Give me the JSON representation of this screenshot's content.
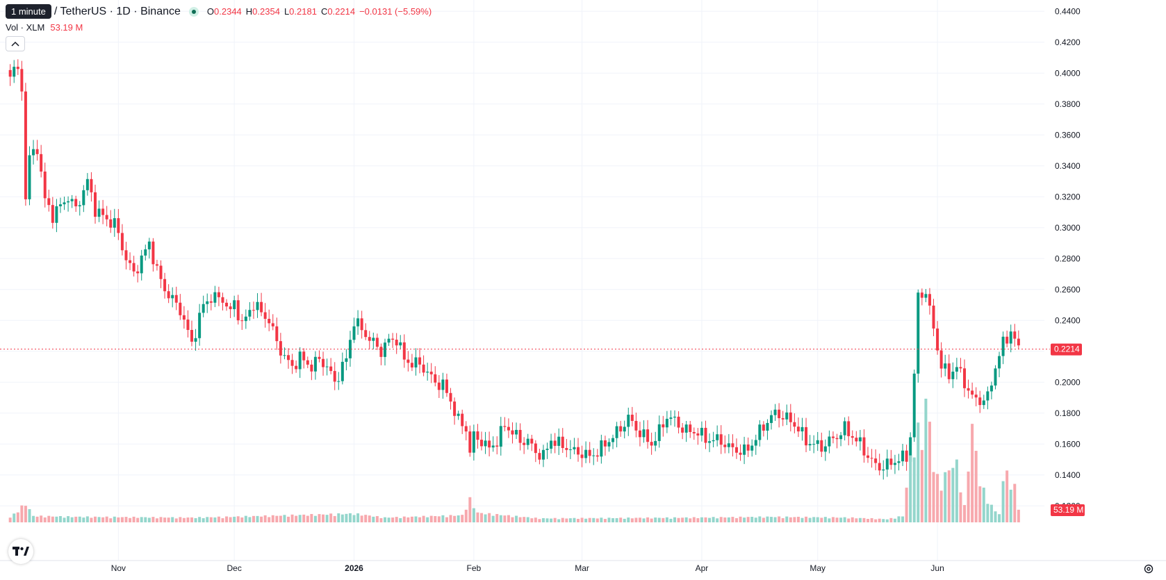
{
  "legend": {
    "tooltip": "1 minute",
    "title": "/ TetherUS · 1D · Binance",
    "open_label": "O",
    "open": "0.2344",
    "high_label": "H",
    "high": "0.2354",
    "low_label": "L",
    "low": "0.2181",
    "close_label": "C",
    "close": "0.2214",
    "change": "−0.0131 (−5.59%)",
    "vol_label": "Vol · XLM",
    "vol_value": "53.19 M"
  },
  "badges": {
    "last_price": "0.2214",
    "last_volume": "53.19 M"
  },
  "icons": {
    "collapse": "chevron-up-icon",
    "logo": "tradingview-logo-icon",
    "settings": "gear-icon"
  },
  "colors": {
    "up": "#089981",
    "down": "#f23645",
    "up_volume": "#94d6cc",
    "down_volume": "#f7a8ad",
    "grid": "#f0f3fa",
    "axis_text": "#131722"
  },
  "chart_data": {
    "type": "candlestick",
    "ylim": [
      0.11,
      0.445
    ],
    "y_ticks": [
      "0.4400",
      "0.4200",
      "0.4000",
      "0.3800",
      "0.3600",
      "0.3400",
      "0.3200",
      "0.3000",
      "0.2800",
      "0.2600",
      "0.2400",
      "0.2200",
      "0.2000",
      "0.1800",
      "0.1600",
      "0.1400",
      "0.1200"
    ],
    "x_ticks": [
      "Nov",
      "Dec",
      "2026",
      "Feb",
      "Mar",
      "Apr",
      "May",
      "Jun"
    ],
    "x_tick_index": [
      31,
      61,
      92,
      123,
      151,
      182,
      212,
      243
    ],
    "start_index": 3,
    "keypoints": [
      [
        3,
        0.402
      ],
      [
        5,
        0.401
      ],
      [
        6,
        0.39
      ],
      [
        7,
        0.32
      ],
      [
        8,
        0.345
      ],
      [
        10,
        0.352
      ],
      [
        12,
        0.318
      ],
      [
        14,
        0.308
      ],
      [
        18,
        0.32
      ],
      [
        20,
        0.312
      ],
      [
        23,
        0.33
      ],
      [
        25,
        0.312
      ],
      [
        28,
        0.305
      ],
      [
        30,
        0.303
      ],
      [
        33,
        0.28
      ],
      [
        35,
        0.27
      ],
      [
        37,
        0.28
      ],
      [
        39,
        0.29
      ],
      [
        41,
        0.272
      ],
      [
        43,
        0.26
      ],
      [
        47,
        0.247
      ],
      [
        50,
        0.225
      ],
      [
        53,
        0.25
      ],
      [
        55,
        0.255
      ],
      [
        58,
        0.254
      ],
      [
        60,
        0.245
      ],
      [
        61,
        0.252
      ],
      [
        63,
        0.237
      ],
      [
        66,
        0.251
      ],
      [
        68,
        0.245
      ],
      [
        70,
        0.24
      ],
      [
        72,
        0.226
      ],
      [
        74,
        0.216
      ],
      [
        76,
        0.21
      ],
      [
        78,
        0.216
      ],
      [
        80,
        0.212
      ],
      [
        81,
        0.21
      ],
      [
        83,
        0.215
      ],
      [
        85,
        0.21
      ],
      [
        87,
        0.2
      ],
      [
        90,
        0.215
      ],
      [
        92,
        0.24
      ],
      [
        94,
        0.234
      ],
      [
        96,
        0.228
      ],
      [
        98,
        0.223
      ],
      [
        99,
        0.22
      ],
      [
        101,
        0.227
      ],
      [
        103,
        0.228
      ],
      [
        105,
        0.215
      ],
      [
        107,
        0.212
      ],
      [
        109,
        0.212
      ],
      [
        111,
        0.206
      ],
      [
        113,
        0.2
      ],
      [
        115,
        0.198
      ],
      [
        117,
        0.188
      ],
      [
        119,
        0.175
      ],
      [
        121,
        0.17
      ],
      [
        122,
        0.155
      ],
      [
        123,
        0.165
      ],
      [
        125,
        0.162
      ],
      [
        127,
        0.157
      ],
      [
        129,
        0.162
      ],
      [
        131,
        0.172
      ],
      [
        133,
        0.168
      ],
      [
        135,
        0.162
      ],
      [
        137,
        0.162
      ],
      [
        139,
        0.155
      ],
      [
        141,
        0.152
      ],
      [
        143,
        0.163
      ],
      [
        145,
        0.16
      ],
      [
        147,
        0.158
      ],
      [
        149,
        0.155
      ],
      [
        151,
        0.154
      ],
      [
        153,
        0.152
      ],
      [
        155,
        0.155
      ],
      [
        157,
        0.16
      ],
      [
        159,
        0.165
      ],
      [
        161,
        0.17
      ],
      [
        163,
        0.177
      ],
      [
        165,
        0.17
      ],
      [
        167,
        0.165
      ],
      [
        169,
        0.16
      ],
      [
        171,
        0.168
      ],
      [
        173,
        0.178
      ],
      [
        175,
        0.175
      ],
      [
        177,
        0.17
      ],
      [
        179,
        0.168
      ],
      [
        181,
        0.168
      ],
      [
        183,
        0.163
      ],
      [
        185,
        0.163
      ],
      [
        187,
        0.162
      ],
      [
        189,
        0.158
      ],
      [
        191,
        0.156
      ],
      [
        193,
        0.155
      ],
      [
        195,
        0.16
      ],
      [
        197,
        0.168
      ],
      [
        199,
        0.175
      ],
      [
        201,
        0.18
      ],
      [
        203,
        0.178
      ],
      [
        205,
        0.175
      ],
      [
        207,
        0.17
      ],
      [
        209,
        0.162
      ],
      [
        211,
        0.16
      ],
      [
        213,
        0.158
      ],
      [
        215,
        0.162
      ],
      [
        217,
        0.165
      ],
      [
        219,
        0.17
      ],
      [
        221,
        0.165
      ],
      [
        223,
        0.16
      ],
      [
        225,
        0.152
      ],
      [
        227,
        0.146
      ],
      [
        229,
        0.145
      ],
      [
        231,
        0.148
      ],
      [
        233,
        0.15
      ],
      [
        235,
        0.152
      ],
      [
        236,
        0.165
      ],
      [
        237,
        0.205
      ],
      [
        238,
        0.255
      ],
      [
        239,
        0.258
      ],
      [
        240,
        0.258
      ],
      [
        242,
        0.235
      ],
      [
        244,
        0.21
      ],
      [
        246,
        0.205
      ],
      [
        248,
        0.21
      ],
      [
        250,
        0.2
      ],
      [
        252,
        0.19
      ],
      [
        254,
        0.188
      ],
      [
        256,
        0.19
      ],
      [
        258,
        0.21
      ],
      [
        260,
        0.225
      ],
      [
        262,
        0.233
      ],
      [
        264,
        0.2214
      ]
    ],
    "volume_keypoints": [
      [
        3,
        6
      ],
      [
        7,
        24
      ],
      [
        9,
        8
      ],
      [
        20,
        7
      ],
      [
        50,
        6
      ],
      [
        60,
        7
      ],
      [
        92,
        11
      ],
      [
        100,
        6
      ],
      [
        120,
        9
      ],
      [
        122,
        29
      ],
      [
        124,
        12
      ],
      [
        140,
        5
      ],
      [
        180,
        6
      ],
      [
        200,
        7
      ],
      [
        220,
        6
      ],
      [
        230,
        4
      ],
      [
        234,
        8
      ],
      [
        236,
        80
      ],
      [
        238,
        115
      ],
      [
        239,
        105
      ],
      [
        240,
        150
      ],
      [
        241,
        125
      ],
      [
        242,
        70
      ],
      [
        243,
        56
      ],
      [
        244,
        50
      ],
      [
        246,
        68
      ],
      [
        248,
        74
      ],
      [
        250,
        20
      ],
      [
        252,
        122
      ],
      [
        254,
        52
      ],
      [
        256,
        28
      ],
      [
        258,
        14
      ],
      [
        259,
        11
      ],
      [
        261,
        85
      ],
      [
        262,
        38
      ],
      [
        263,
        52
      ],
      [
        264,
        16
      ]
    ]
  }
}
